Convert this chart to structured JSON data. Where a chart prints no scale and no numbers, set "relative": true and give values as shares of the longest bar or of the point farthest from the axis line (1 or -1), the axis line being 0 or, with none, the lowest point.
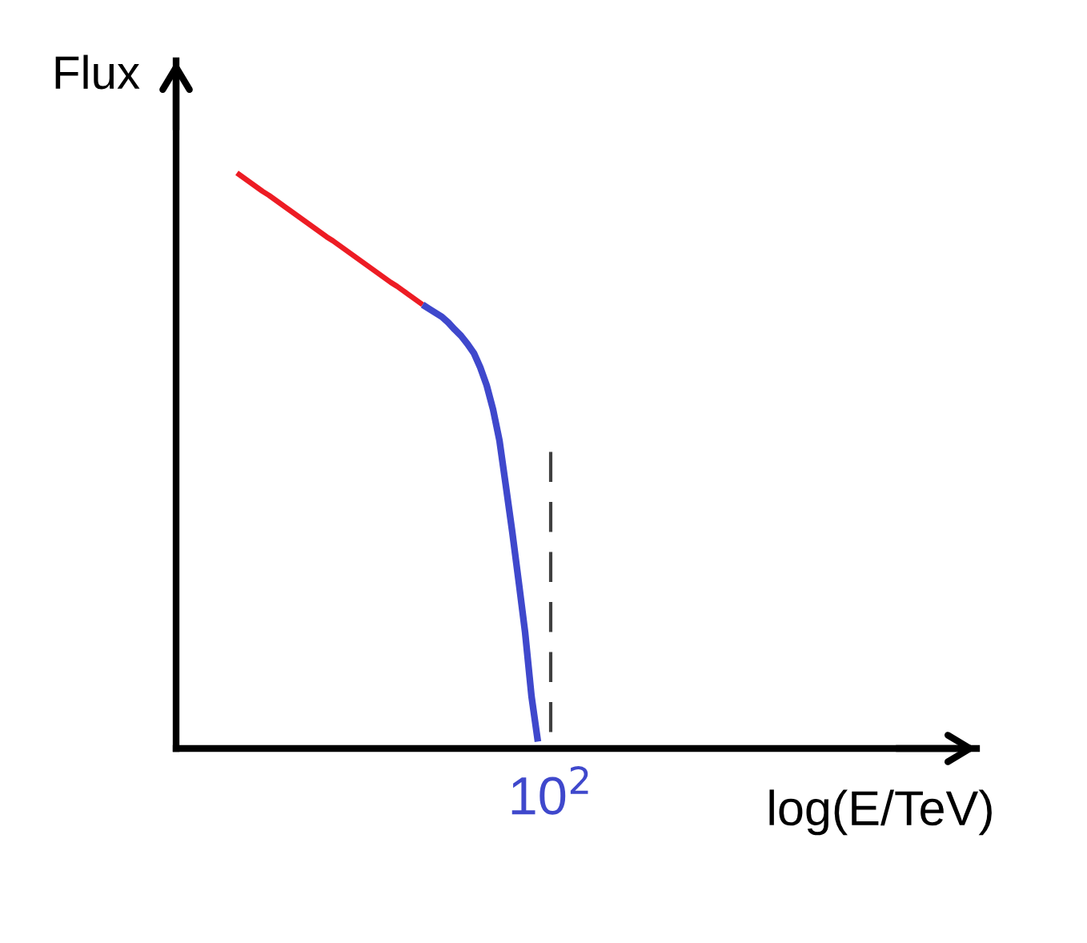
{
  "chart_data": {
    "type": "line",
    "xlabel": "log(E/TeV)",
    "ylabel": "Flux",
    "relative": true,
    "annotations": [
      "10$^{2}$"
    ],
    "categories": [
      null,
      null,
      null,
      null,
      null,
      null,
      null,
      null,
      null,
      null,
      null,
      null,
      null,
      null,
      null,
      null,
      null,
      null,
      null,
      null,
      null,
      null,
      null,
      null,
      null,
      null,
      null,
      null,
      null,
      null,
      null,
      null,
      null,
      null,
      null,
      null,
      null,
      null,
      null,
      null,
      null,
      null,
      null,
      null,
      null,
      null,
      null,
      null,
      null,
      null
    ],
    "series": [
      {
        "color": "#ed1c24",
        "values": [
          1.0,
          0.992,
          0.984,
          0.976,
          0.968,
          0.961,
          0.953,
          0.945,
          0.937,
          0.929,
          0.921,
          0.913,
          0.905,
          0.897,
          0.889,
          0.882,
          0.874,
          0.866,
          0.858,
          0.85,
          0.842,
          0.834,
          0.826,
          0.818,
          0.81,
          0.803,
          0.795,
          0.787,
          0.779,
          0.771,
          null,
          null,
          null,
          null,
          null,
          null,
          null,
          null,
          null,
          null,
          null,
          null,
          null,
          null,
          null,
          null,
          null,
          null,
          null,
          null
        ]
      },
      {
        "color": "#3f48cc",
        "values": [
          null,
          null,
          null,
          null,
          null,
          null,
          null,
          null,
          null,
          null,
          null,
          null,
          null,
          null,
          null,
          null,
          null,
          null,
          null,
          null,
          null,
          null,
          null,
          null,
          null,
          null,
          null,
          null,
          null,
          0.771,
          0.764,
          0.757,
          0.75,
          0.74,
          0.728,
          0.717,
          0.703,
          0.687,
          0.662,
          0.631,
          0.589,
          0.535,
          0.456,
          0.376,
          0.29,
          0.202,
          0.091,
          0.012,
          null,
          null
        ]
      }
    ]
  }
}
